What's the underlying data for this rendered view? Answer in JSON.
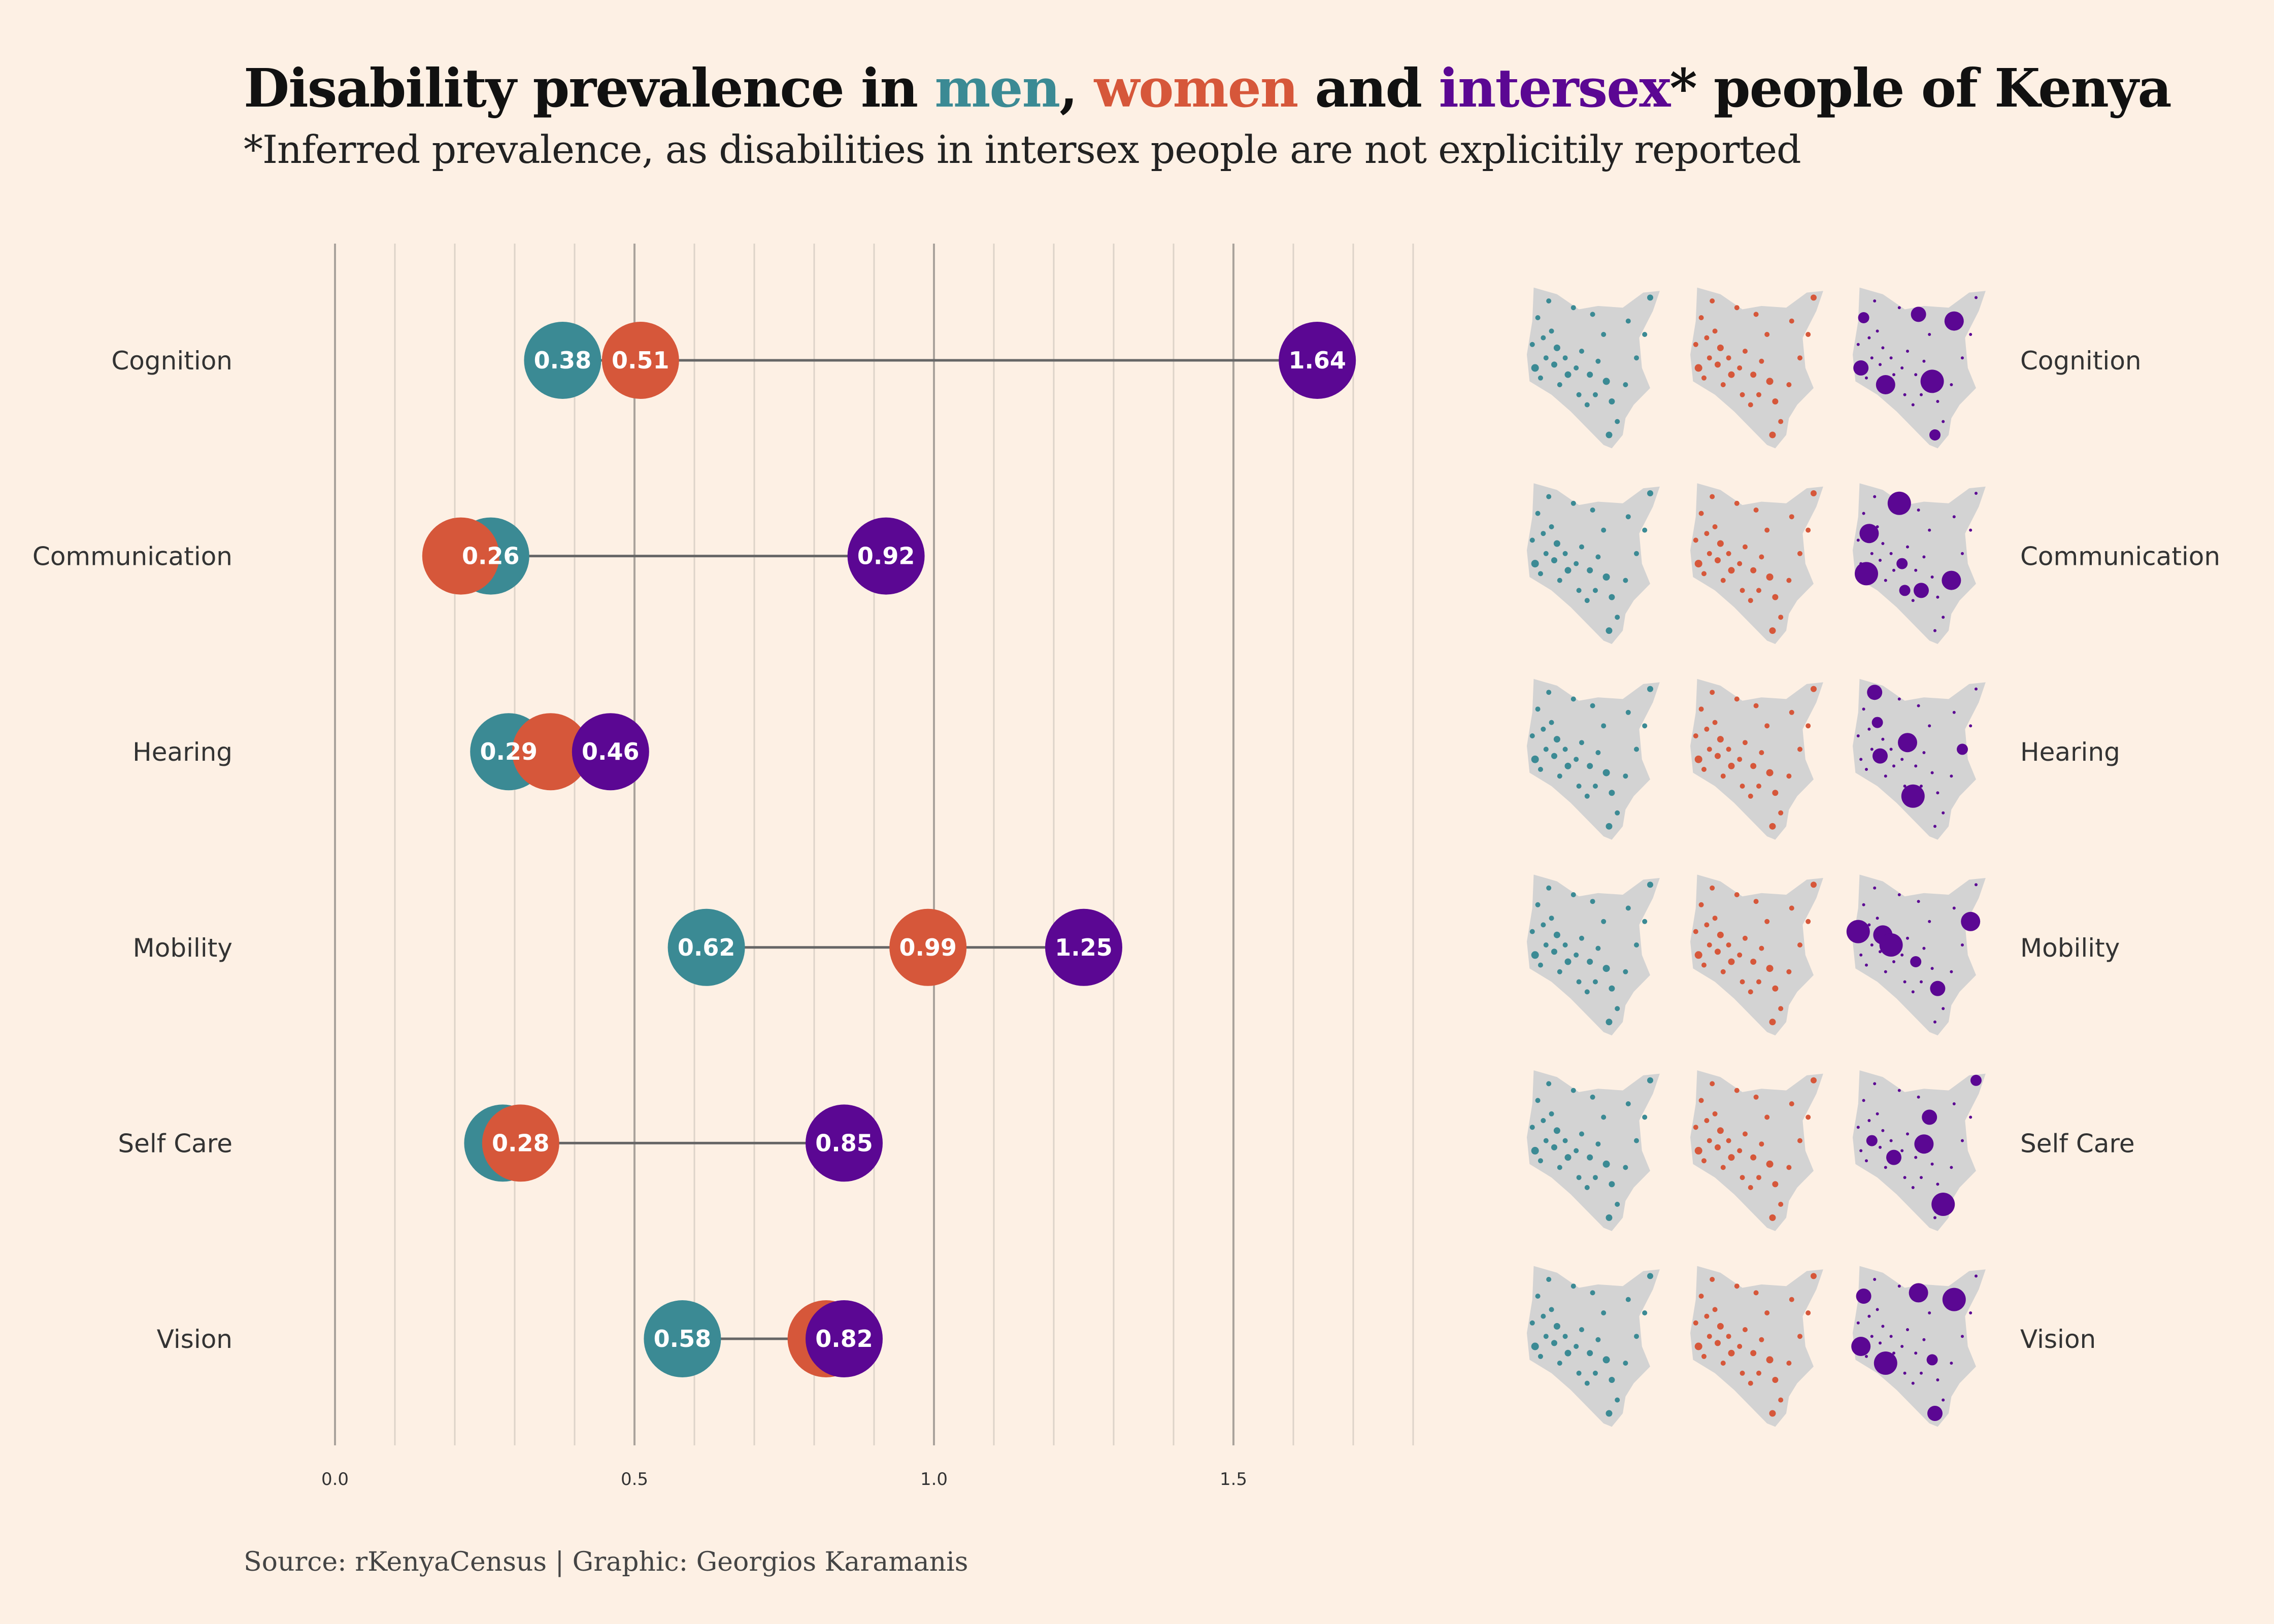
{
  "header": {
    "title_parts": [
      {
        "text": "Disability prevalence in ",
        "color": "#111111"
      },
      {
        "text": "men",
        "color": "#3b8a94"
      },
      {
        "text": ", ",
        "color": "#111111"
      },
      {
        "text": "women",
        "color": "#d6573a"
      },
      {
        "text": " and ",
        "color": "#111111"
      },
      {
        "text": "intersex",
        "color": "#5b0793"
      },
      {
        "text": "* people of Kenya",
        "color": "#111111"
      }
    ],
    "subtitle": "*Inferred prevalence, as disabilities in intersex people are not explicitily reported"
  },
  "caption": "Source: rKenyaCensus | Graphic: Georgios Karamanis",
  "colors": {
    "background": "#fdf0e4",
    "men": "#3b8a94",
    "women": "#d6573a",
    "intersex": "#5b0793",
    "map_fill": "#d3d3d3",
    "major_grid": "#aaa39c",
    "minor_grid": "#ddd3c9",
    "connector": "#666666"
  },
  "chart_data": {
    "type": "dumbbell",
    "categories": [
      "Cognition",
      "Communication",
      "Hearing",
      "Mobility",
      "Self Care",
      "Vision"
    ],
    "series": [
      {
        "key": "men",
        "values": [
          0.38,
          0.26,
          0.29,
          0.62,
          0.28,
          0.58
        ]
      },
      {
        "key": "women",
        "values": [
          0.51,
          0.21,
          0.36,
          0.99,
          0.31,
          0.82
        ]
      },
      {
        "key": "intersex",
        "values": [
          1.64,
          0.92,
          0.46,
          1.25,
          0.85,
          0.85
        ]
      }
    ],
    "value_labels": [
      [
        "0.38",
        "0.51",
        "1.64"
      ],
      [
        "0.26",
        "",
        "0.92"
      ],
      [
        "0.29",
        "",
        "0.46"
      ],
      [
        "0.62",
        "0.99",
        "1.25"
      ],
      [
        "",
        "0.28",
        "0.85"
      ],
      [
        "0.58",
        "",
        "0.82"
      ]
    ],
    "x_ticks": [
      0.0,
      0.5,
      1.0,
      1.5
    ],
    "x_tick_labels": [
      "0.0",
      "0.5",
      "1.0",
      "1.5"
    ],
    "x_minor_step": 0.1,
    "xlim": [
      0,
      1.8
    ],
    "grid": true,
    "small_multiples": {
      "type": "map",
      "region": "Kenya counties",
      "columns": [
        "men",
        "women",
        "intersex"
      ],
      "rows": [
        "Cognition",
        "Communication",
        "Hearing",
        "Mobility",
        "Self Care",
        "Vision"
      ]
    }
  }
}
